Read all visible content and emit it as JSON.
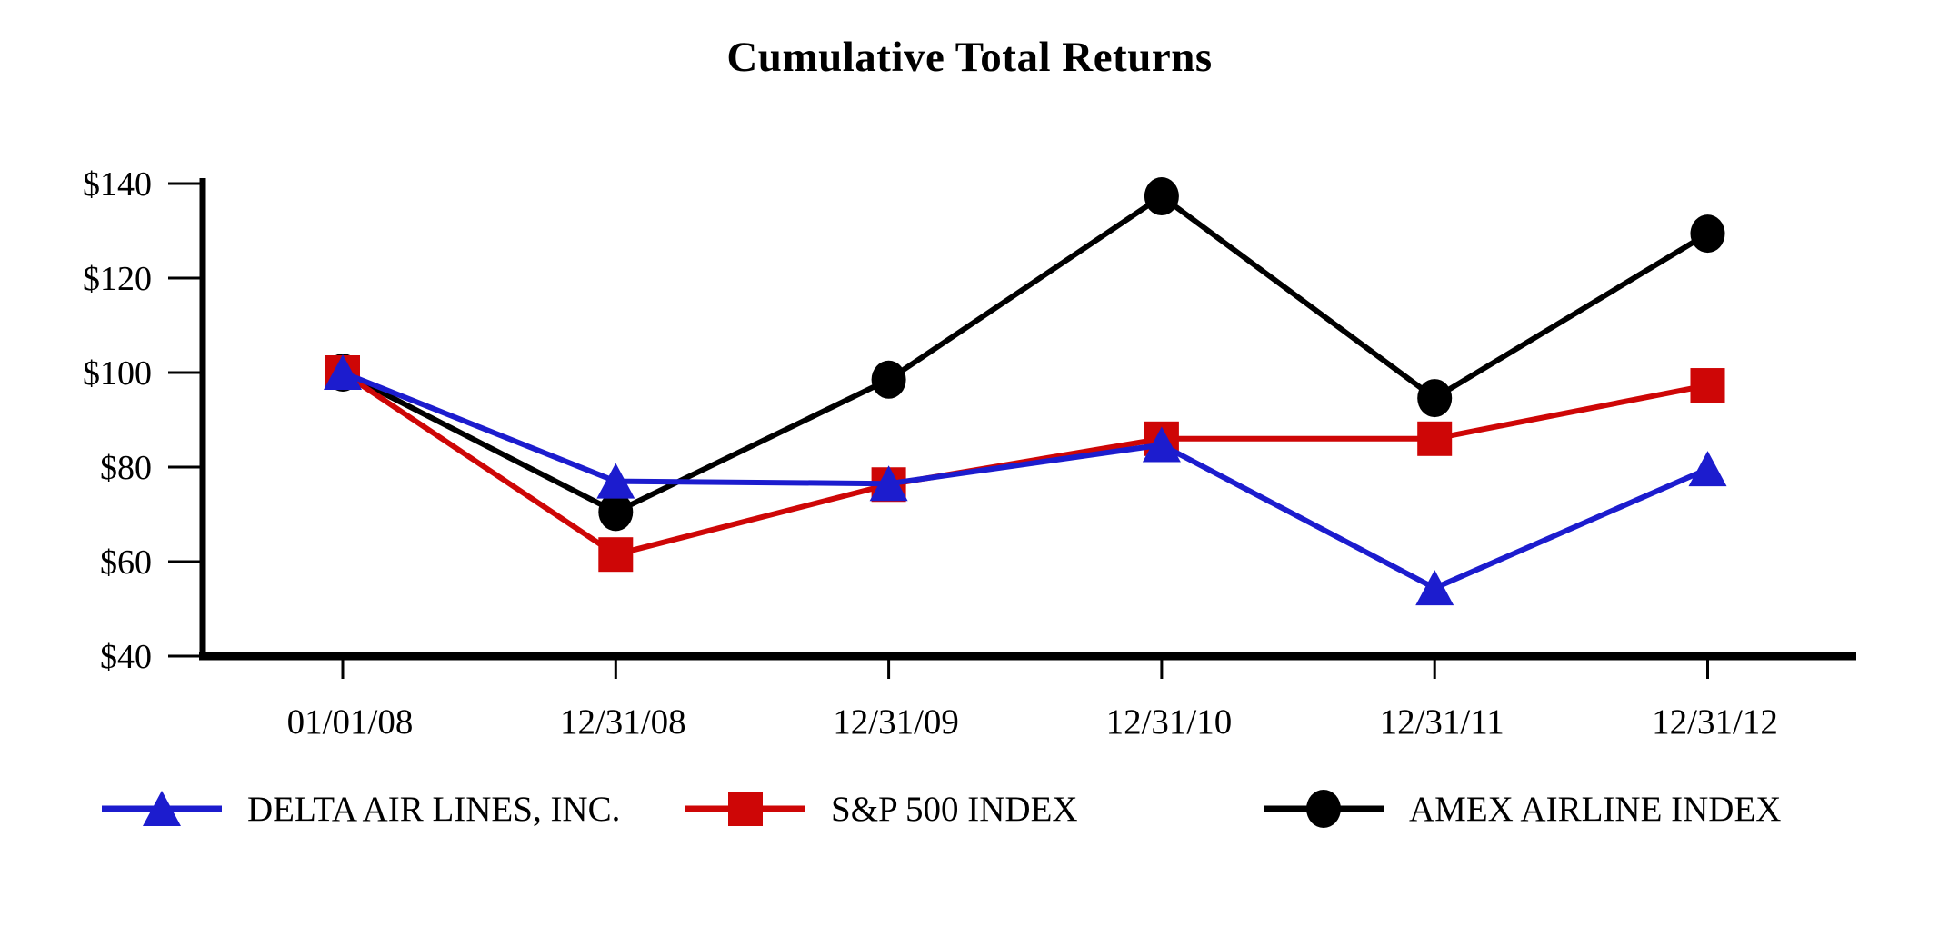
{
  "title": "Cumulative Total Returns",
  "chart_data": {
    "type": "line",
    "title": "Cumulative Total Returns",
    "categories": [
      "01/01/08",
      "12/31/08",
      "12/31/09",
      "12/31/10",
      "12/31/11",
      "12/31/12"
    ],
    "series": [
      {
        "name": "DELTA AIR LINES, INC.",
        "marker": "triangle",
        "color": "#1C1CCE",
        "values": [
          100,
          77,
          76.5,
          84.7,
          54.4,
          79.6
        ]
      },
      {
        "name": "S&P 500 INDEX",
        "marker": "square",
        "color": "#CE0606",
        "values": [
          100,
          61.5,
          76.3,
          86,
          86,
          97.3
        ]
      },
      {
        "name": "AMEX AIRLINE INDEX",
        "marker": "circle",
        "color": "#000000",
        "values": [
          100,
          70.5,
          98.5,
          137.3,
          94.6,
          129.4
        ]
      }
    ],
    "ylim": [
      40,
      140
    ],
    "y_tick_step": 20,
    "y_tick_labels": [
      "$40",
      "$60",
      "$80",
      "$100",
      "$120",
      "$140"
    ],
    "y_tick_prefix": "$",
    "grid": "off",
    "legend_position": "bottom",
    "axis_color": "#000000"
  }
}
